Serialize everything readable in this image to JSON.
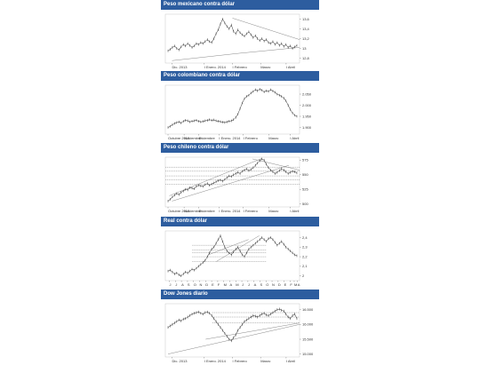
{
  "charts": [
    {
      "title": "Peso mexicano contra dólar",
      "chart_data": {
        "type": "line",
        "title": "Peso mexicano contra dólar",
        "xlabel": "",
        "ylabel": "",
        "ylim": [
          12.7,
          13.7
        ],
        "y_ticks": [
          13.6,
          13.4,
          13.2,
          13.0,
          12.8
        ],
        "x_tick_labels": [
          "Dic. 2013",
          "I Enero. 2014",
          "I Febrero",
          "Marzo",
          "I Abril"
        ],
        "x_tick_positions": [
          0.05,
          0.29,
          0.5,
          0.71,
          0.9
        ],
        "series": [
          {
            "values": [
              12.95,
              12.98,
              13.02,
              13.05,
              13.0,
              12.97,
              13.03,
              13.08,
              13.05,
              13.1,
              13.06,
              13.02,
              13.05,
              13.1,
              13.08,
              13.12,
              13.1,
              13.14,
              13.18,
              13.14,
              13.12,
              13.2,
              13.3,
              13.38,
              13.5,
              13.6,
              13.52,
              13.45,
              13.4,
              13.48,
              13.35,
              13.3,
              13.38,
              13.32,
              13.28,
              13.25,
              13.3,
              13.34,
              13.28,
              13.22,
              13.26,
              13.2,
              13.16,
              13.2,
              13.15,
              13.18,
              13.12,
              13.1,
              13.14,
              13.08,
              13.12,
              13.06,
              13.1,
              13.04,
              13.08,
              13.02,
              13.05,
              13.0,
              13.03,
              13.06
            ]
          }
        ],
        "lines": [
          {
            "style": "trend",
            "points": [
              [
                0.5,
                13.62
              ],
              [
                1.0,
                13.18
              ]
            ]
          },
          {
            "style": "curve",
            "points": [
              [
                0.05,
                12.75
              ],
              [
                0.55,
                12.9
              ],
              [
                1.0,
                13.02
              ]
            ]
          }
        ],
        "grid": false
      }
    },
    {
      "title": "Peso colombiano contra dólar",
      "chart_data": {
        "type": "line",
        "title": "Peso colombiano contra dólar",
        "xlabel": "",
        "ylabel": "",
        "ylim": [
          1870,
          2090
        ],
        "y_ticks": [
          2050,
          2000,
          1950,
          1900
        ],
        "y_tick_labels": [
          "2.050",
          "2.000",
          "1.950",
          "1.900"
        ],
        "x_tick_labels": [
          "Octubre 2013",
          "Noviembre",
          "Diciembre",
          "I Enero. 2014",
          "I Febrero",
          "Marzo",
          "I Abril"
        ],
        "x_tick_positions": [
          0.02,
          0.14,
          0.25,
          0.4,
          0.58,
          0.77,
          0.93
        ],
        "series": [
          {
            "values": [
              1900,
              1905,
              1912,
              1918,
              1922,
              1925,
              1920,
              1928,
              1932,
              1930,
              1925,
              1928,
              1930,
              1932,
              1928,
              1925,
              1927,
              1930,
              1932,
              1935,
              1932,
              1934,
              1930,
              1928,
              1926,
              1924,
              1922,
              1925,
              1928,
              1930,
              1935,
              1945,
              1960,
              1985,
              2010,
              2030,
              2040,
              2045,
              2055,
              2062,
              2070,
              2065,
              2072,
              2068,
              2060,
              2065,
              2062,
              2070,
              2064,
              2058,
              2050,
              2045,
              2040,
              2032,
              2020,
              2000,
              1980,
              1965,
              1955,
              1950
            ]
          }
        ],
        "lines": [],
        "grid": false
      }
    },
    {
      "title": "Peso chileno contra dólar",
      "chart_data": {
        "type": "line",
        "title": "Peso chileno contra dólar",
        "xlabel": "",
        "ylabel": "",
        "ylim": [
          495,
          580
        ],
        "y_ticks": [
          575,
          550,
          525,
          500
        ],
        "x_tick_labels": [
          "Octubre 2013",
          "Noviembre",
          "Diciembre",
          "I Enero. 2014",
          "I Febrero",
          "Marzo",
          "I Abril"
        ],
        "x_tick_positions": [
          0.02,
          0.14,
          0.25,
          0.4,
          0.58,
          0.77,
          0.93
        ],
        "series": [
          {
            "values": [
              505,
              508,
              512,
              515,
              518,
              516,
              520,
              522,
              525,
              524,
              528,
              527,
              526,
              530,
              532,
              531,
              530,
              533,
              535,
              532,
              534,
              536,
              538,
              540,
              541,
              539,
              542,
              545,
              548,
              547,
              550,
              552,
              554,
              552,
              556,
              558,
              560,
              557,
              559,
              562,
              566,
              570,
              574,
              577,
              575,
              568,
              562,
              558,
              555,
              552,
              554,
              557,
              560,
              558,
              555,
              552,
              554,
              556,
              555,
              553
            ]
          }
        ],
        "lines": [
          {
            "style": "trend",
            "points": [
              [
                0.03,
                514
              ],
              [
                0.72,
                578
              ]
            ]
          },
          {
            "style": "trend",
            "points": [
              [
                0.05,
                505
              ],
              [
                0.92,
                566
              ]
            ]
          },
          {
            "style": "trend",
            "points": [
              [
                0.65,
                577
              ],
              [
                1.0,
                558
              ]
            ]
          },
          {
            "style": "level",
            "points": [
              [
                0.0,
                563
              ],
              [
                1.0,
                563
              ]
            ]
          },
          {
            "style": "level",
            "points": [
              [
                0.0,
                556
              ],
              [
                1.0,
                556
              ]
            ]
          },
          {
            "style": "level",
            "points": [
              [
                0.0,
                548
              ],
              [
                1.0,
                548
              ]
            ]
          },
          {
            "style": "level",
            "points": [
              [
                0.0,
                541
              ],
              [
                1.0,
                541
              ]
            ]
          },
          {
            "style": "level",
            "points": [
              [
                0.0,
                534
              ],
              [
                1.0,
                534
              ]
            ]
          }
        ],
        "grid": false
      }
    },
    {
      "title": "Real contra dólar",
      "chart_data": {
        "type": "line",
        "title": "Real contra dólar",
        "xlabel": "",
        "ylabel": "",
        "ylim": [
          1.95,
          2.47
        ],
        "y_ticks": [
          2.4,
          2.3,
          2.2,
          2.1,
          2.0
        ],
        "y_tick_labels": [
          "2,4",
          "2,3",
          "2,2",
          "2,1",
          "2"
        ],
        "x_tick_labels": [
          "J",
          "J",
          "A",
          "S",
          "O",
          "N",
          "D",
          "E",
          "F",
          "M",
          "A",
          "M",
          "J",
          "J",
          "A",
          "S",
          "O",
          "N",
          "D",
          "E",
          "F",
          "M",
          "A"
        ],
        "x_tick_positions": [
          0.03,
          0.075,
          0.12,
          0.165,
          0.21,
          0.255,
          0.3,
          0.345,
          0.39,
          0.435,
          0.48,
          0.525,
          0.57,
          0.615,
          0.66,
          0.705,
          0.75,
          0.795,
          0.84,
          0.885,
          0.93,
          0.96,
          0.985
        ],
        "series": [
          {
            "values": [
              2.05,
              2.06,
              2.04,
              2.02,
              2.03,
              2.01,
              2.0,
              2.02,
              2.04,
              2.03,
              2.05,
              2.07,
              2.06,
              2.08,
              2.1,
              2.12,
              2.14,
              2.16,
              2.2,
              2.24,
              2.28,
              2.3,
              2.34,
              2.38,
              2.42,
              2.36,
              2.3,
              2.26,
              2.24,
              2.22,
              2.25,
              2.28,
              2.3,
              2.26,
              2.22,
              2.2,
              2.24,
              2.28,
              2.3,
              2.32,
              2.34,
              2.36,
              2.38,
              2.4,
              2.38,
              2.36,
              2.39,
              2.4,
              2.38,
              2.35,
              2.32,
              2.34,
              2.36,
              2.33,
              2.3,
              2.28,
              2.26,
              2.24,
              2.22,
              2.21
            ]
          }
        ],
        "lines": [
          {
            "style": "trend",
            "points": [
              [
                0.38,
                2.15
              ],
              [
                0.7,
                2.42
              ]
            ]
          },
          {
            "style": "trend",
            "points": [
              [
                0.32,
                2.22
              ],
              [
                0.62,
                2.38
              ]
            ]
          },
          {
            "style": "level",
            "points": [
              [
                0.2,
                2.32
              ],
              [
                0.75,
                2.32
              ]
            ]
          },
          {
            "style": "level",
            "points": [
              [
                0.2,
                2.27
              ],
              [
                0.75,
                2.27
              ]
            ]
          },
          {
            "style": "level",
            "points": [
              [
                0.2,
                2.24
              ],
              [
                0.75,
                2.24
              ]
            ]
          },
          {
            "style": "level",
            "points": [
              [
                0.2,
                2.2
              ],
              [
                0.75,
                2.2
              ]
            ]
          },
          {
            "style": "level",
            "points": [
              [
                0.2,
                2.15
              ],
              [
                0.75,
                2.15
              ]
            ]
          }
        ],
        "grid": false
      }
    },
    {
      "title": "Dow Jones diario",
      "chart_data": {
        "type": "line",
        "title": "Dow Jones diario",
        "xlabel": "",
        "ylabel": "",
        "ylim": [
          14900,
          16700
        ],
        "y_ticks": [
          16500,
          16000,
          15500,
          15000
        ],
        "y_tick_labels": [
          "16.500",
          "16.000",
          "15.500",
          "15.000"
        ],
        "x_tick_labels": [
          "Dic. 2013",
          "I Enero. 2014",
          "I Febrero",
          "Marzo",
          "I Abril"
        ],
        "x_tick_positions": [
          0.05,
          0.29,
          0.5,
          0.71,
          0.9
        ],
        "series": [
          {
            "values": [
              15900,
              15950,
              16000,
              16050,
              16100,
              16150,
              16120,
              16180,
              16200,
              16250,
              16300,
              16350,
              16380,
              16400,
              16420,
              16380,
              16350,
              16400,
              16420,
              16380,
              16300,
              16200,
              16100,
              16000,
              15900,
              15800,
              15700,
              15600,
              15500,
              15450,
              15550,
              15650,
              15800,
              15900,
              16000,
              16100,
              16150,
              16200,
              16250,
              16300,
              16280,
              16250,
              16300,
              16350,
              16380,
              16320,
              16300,
              16350,
              16400,
              16450,
              16500,
              16520,
              16480,
              16450,
              16350,
              16250,
              16200,
              16300,
              16350,
              16200
            ]
          }
        ],
        "lines": [
          {
            "style": "trend",
            "points": [
              [
                0.02,
                15000
              ],
              [
                1.0,
                16000
              ]
            ]
          },
          {
            "style": "trend",
            "points": [
              [
                0.3,
                15500
              ],
              [
                1.0,
                16050
              ]
            ]
          },
          {
            "style": "level",
            "points": [
              [
                0.35,
                16400
              ],
              [
                1.0,
                16400
              ]
            ]
          },
          {
            "style": "level",
            "points": [
              [
                0.35,
                16250
              ],
              [
                1.0,
                16250
              ]
            ]
          },
          {
            "style": "level",
            "points": [
              [
                0.35,
                16050
              ],
              [
                1.0,
                16050
              ]
            ]
          }
        ],
        "grid": false
      }
    }
  ]
}
